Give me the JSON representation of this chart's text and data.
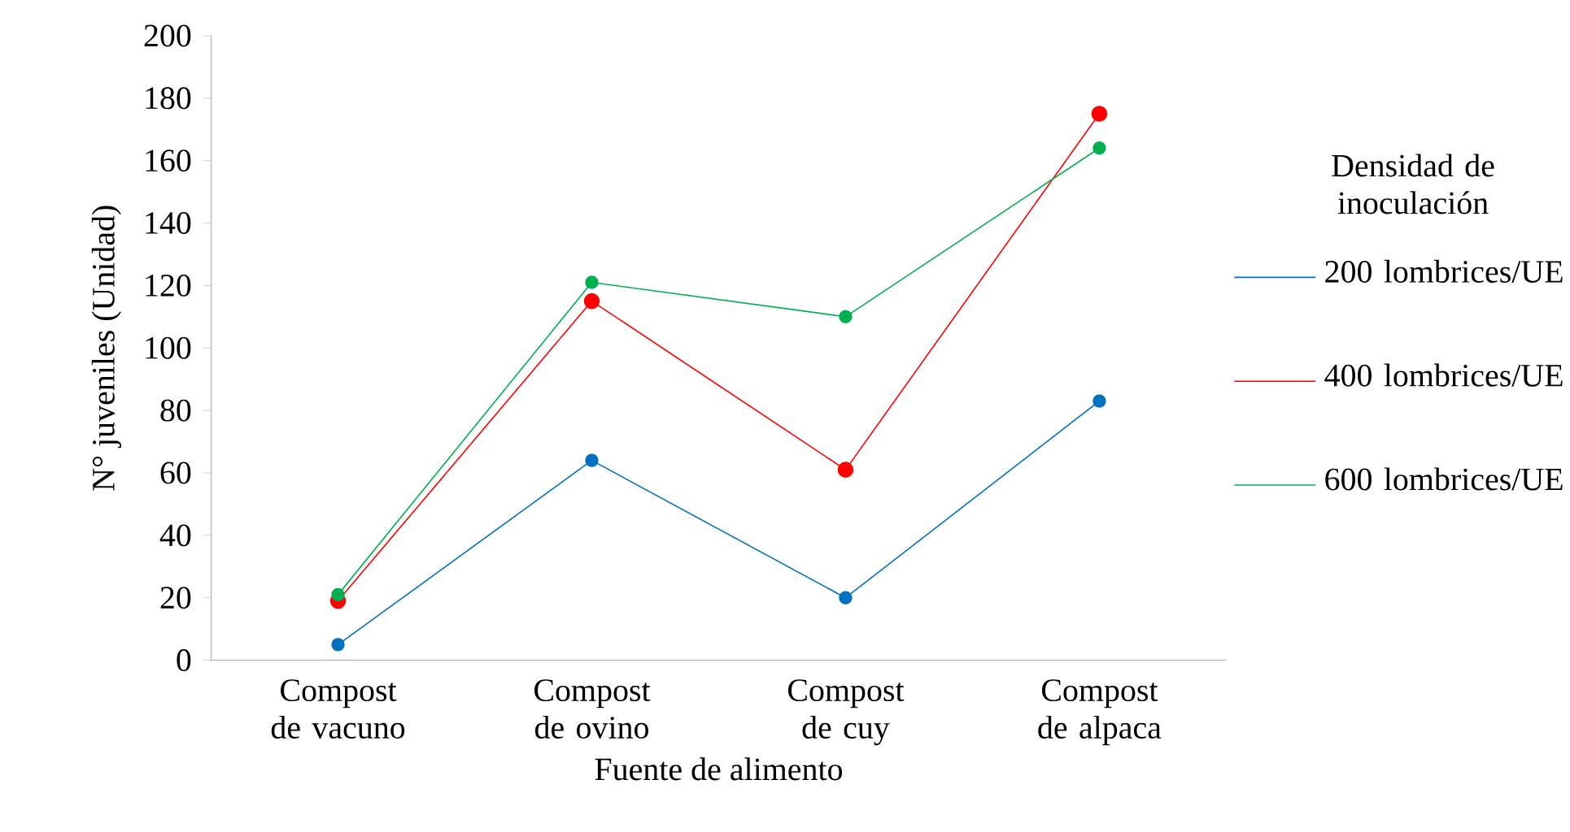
{
  "chart_data": {
    "type": "line",
    "xlabel": "Fuente de alimento",
    "ylabel": "N° juveniles (Unidad)",
    "legend_title": "Densidad de inoculación",
    "categories": [
      "Compost de vacuno",
      "Compost de ovino",
      "Compost de cuy",
      "Compost de alpaca"
    ],
    "series": [
      {
        "name": "200 lombrices/UE",
        "color": "#0070c0",
        "values": [
          5,
          64,
          20,
          83
        ]
      },
      {
        "name": "400 lombrices/UE",
        "color": "#ff0000",
        "values": [
          19,
          115,
          61,
          175
        ]
      },
      {
        "name": "600 lombrices/UE",
        "color": "#00b050",
        "values": [
          21,
          121,
          110,
          164
        ]
      }
    ],
    "ylim": [
      0,
      200
    ],
    "yticks": [
      0,
      20,
      40,
      60,
      80,
      100,
      120,
      140,
      160,
      180,
      200
    ],
    "marker": "circle",
    "legend": "right"
  }
}
